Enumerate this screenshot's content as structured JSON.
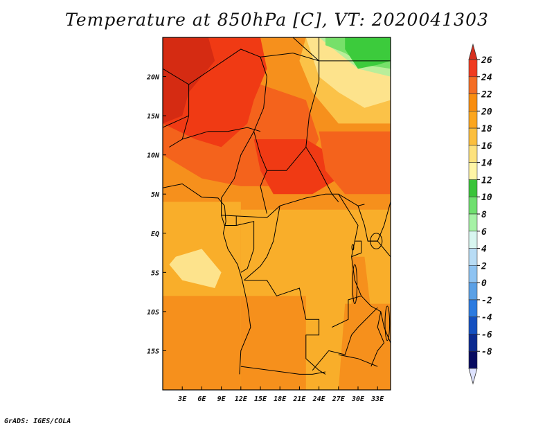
{
  "title": "Temperature at 850hPa [C], VT: 2020041303",
  "credit": "GrADS: IGES/COLA",
  "map": {
    "lon_range": [
      0,
      35
    ],
    "lat_range": [
      -20,
      25
    ],
    "lat_labels": [
      "20N",
      "15N",
      "10N",
      "5N",
      "EQ",
      "5S",
      "10S",
      "15S"
    ],
    "lat_values": [
      20,
      15,
      10,
      5,
      0,
      -5,
      -10,
      -15
    ],
    "lon_labels": [
      "3E",
      "6E",
      "9E",
      "12E",
      "15E",
      "18E",
      "21E",
      "24E",
      "27E",
      "30E",
      "33E"
    ],
    "lon_values": [
      3,
      6,
      9,
      12,
      15,
      18,
      21,
      24,
      27,
      30,
      33
    ]
  },
  "colorbar": {
    "labels": [
      "26",
      "24",
      "22",
      "20",
      "18",
      "16",
      "14",
      "12",
      "10",
      "8",
      "6",
      "4",
      "2",
      "0",
      "-2",
      "-4",
      "-6",
      "-8"
    ],
    "colors": [
      "#d7301f",
      "#f03b20",
      "#f46d24",
      "#f88d0f",
      "#fca61e",
      "#fcbf3e",
      "#fde27e",
      "#fff5a6",
      "#3ac43a",
      "#6fe06f",
      "#a6f2a6",
      "#d8f6f0",
      "#b8dcf5",
      "#8ec3f2",
      "#5aa0e6",
      "#2c7be0",
      "#1450c0",
      "#0b2a90",
      "#070b60"
    ],
    "lower_tip_color": "#dde2ff"
  },
  "field_colors": {
    "deep_red": "#d52b12",
    "red": "#f03a14",
    "orange_red": "#f4631c",
    "orange": "#f6901c",
    "light_orange": "#f9ae2a",
    "yellow_orange": "#fbc248",
    "pale_yellow": "#fde38c",
    "pale_green": "#b9ee9a",
    "light_green": "#77e06a",
    "green": "#3ccb3c"
  }
}
